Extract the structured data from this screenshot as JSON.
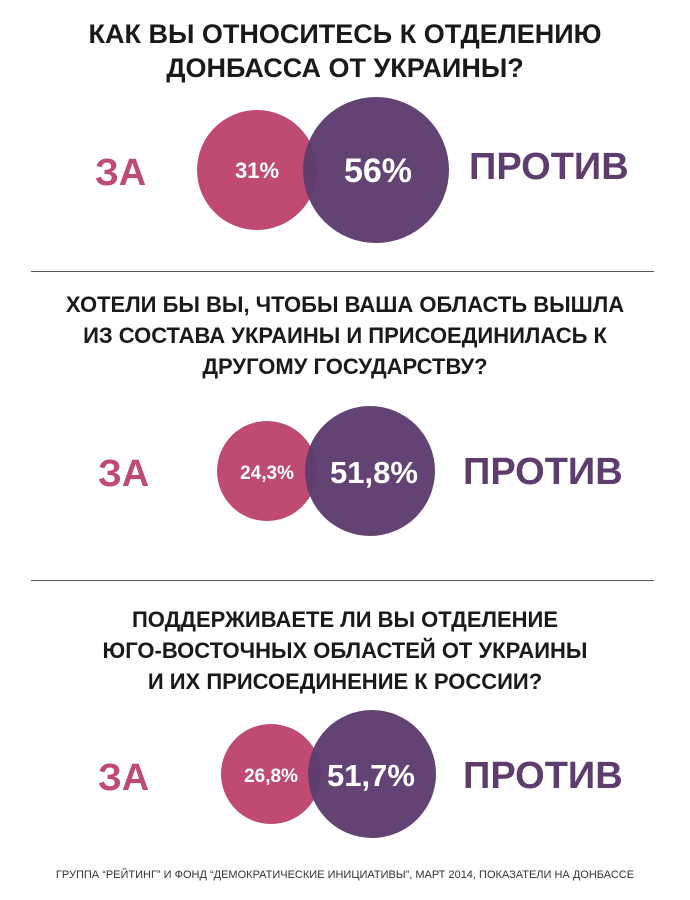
{
  "colors": {
    "for": "#c04b72",
    "against": "#5e3d6e",
    "text": "#1a1a1a"
  },
  "chart_data": [
    {
      "type": "bubble",
      "title_lines": [
        "Как вы относитесь к отделению",
        "Донбасса от Украины?"
      ],
      "series": [
        {
          "name": "ЗА",
          "value": 31,
          "label": "31%"
        },
        {
          "name": "ПРОТИВ",
          "value": 56,
          "label": "56%"
        }
      ]
    },
    {
      "type": "bubble",
      "title_lines": [
        "Хотели бы вы, чтобы ваша область вышла",
        "из состава Украины и присоединилась к",
        "другому государству?"
      ],
      "series": [
        {
          "name": "ЗА",
          "value": 24.3,
          "label": "24,3%"
        },
        {
          "name": "ПРОТИВ",
          "value": 51.8,
          "label": "51,8%"
        }
      ]
    },
    {
      "type": "bubble",
      "title_lines": [
        "Поддерживаете ли вы отделение",
        "юго-восточных областей от Украины",
        "и их присоединение к России?"
      ],
      "series": [
        {
          "name": "ЗА",
          "value": 26.8,
          "label": "26,8%"
        },
        {
          "name": "ПРОТИВ",
          "value": 51.7,
          "label": "51,7%"
        }
      ]
    }
  ],
  "source": "Группа “Рейтинг” и фонд “Демократические инициативы”, март 2014, показатели на Донбассе"
}
